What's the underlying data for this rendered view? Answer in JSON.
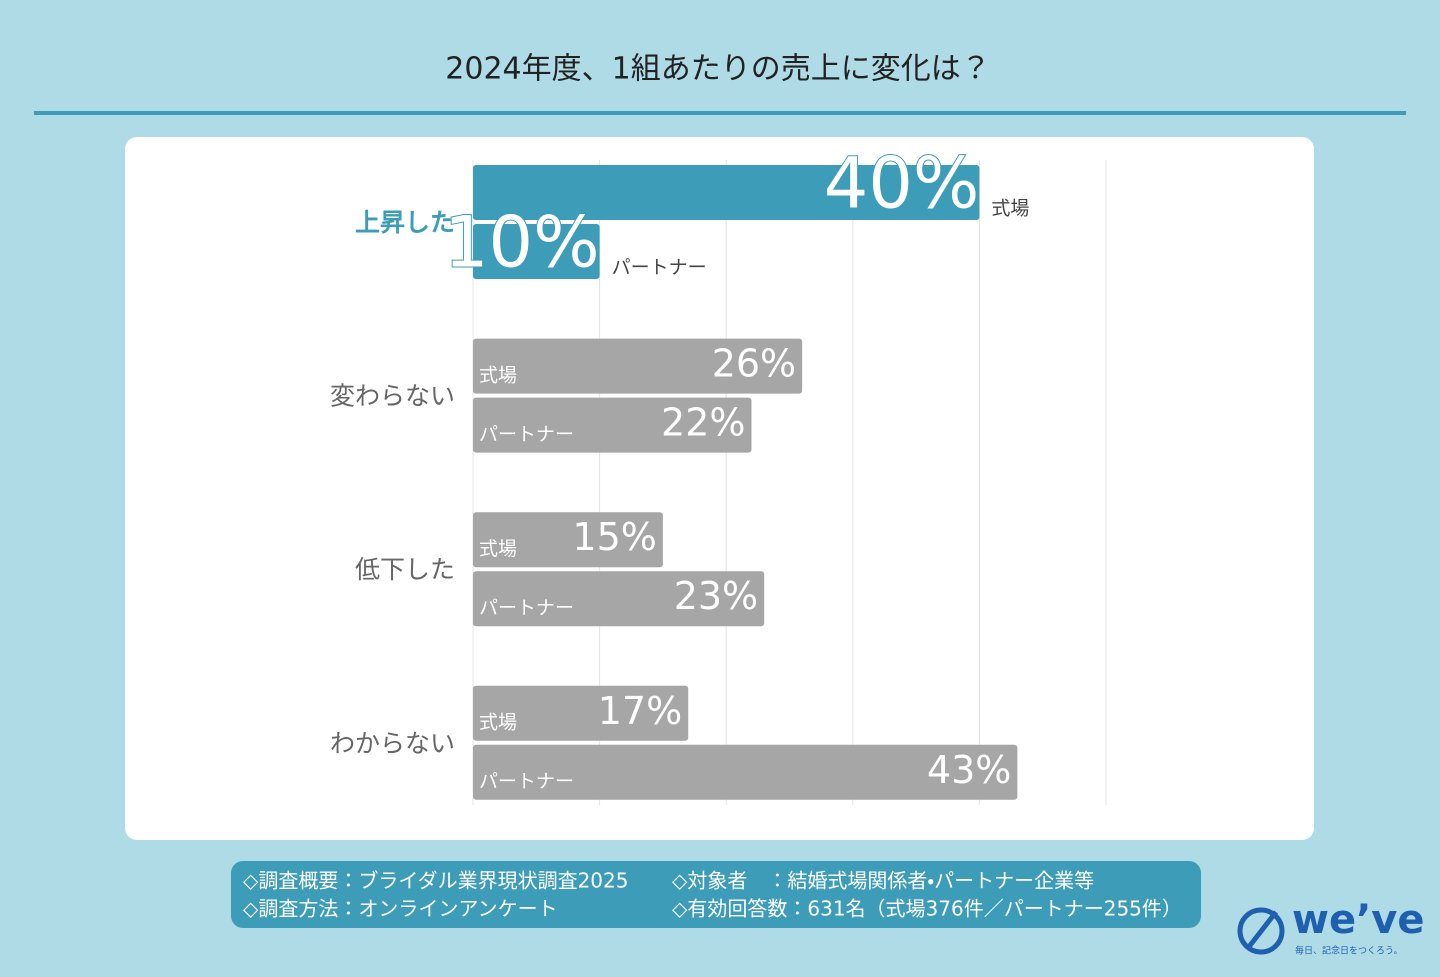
{
  "chart_data": {
    "type": "bar",
    "orientation": "horizontal",
    "title": "2024年度、1組あたりの売上に変化は？",
    "categories": [
      "上昇した",
      "変わらない",
      "低下した",
      "わからない"
    ],
    "series": [
      {
        "name": "式場",
        "color": "#a6a6a6",
        "values": [
          40,
          26,
          15,
          17
        ],
        "value_labels": [
          "40%",
          "26%",
          "15%",
          "17%"
        ]
      },
      {
        "name": "パートナー",
        "color": "#a6a6a6",
        "values": [
          10,
          22,
          23,
          43
        ],
        "value_labels": [
          "10%",
          "22%",
          "23%",
          "43%"
        ]
      }
    ],
    "highlight_color": "#3d9db8",
    "xlim": [
      0,
      50
    ],
    "xticks": [
      0,
      10,
      20,
      30,
      40,
      50
    ],
    "grid": true
  },
  "notes": [
    [
      "◇調査概要：ブライダル業界現状調査2025",
      "◇対象者　：結婚式場関係者・パートナー企業等"
    ],
    [
      "◇調査方法：オンラインアンケート",
      "◇有効回答数：631名（式場376件／パートナー255件）"
    ]
  ],
  "logo": {
    "name": "we’ve",
    "tagline": "毎日、記念日をつくろう。"
  }
}
